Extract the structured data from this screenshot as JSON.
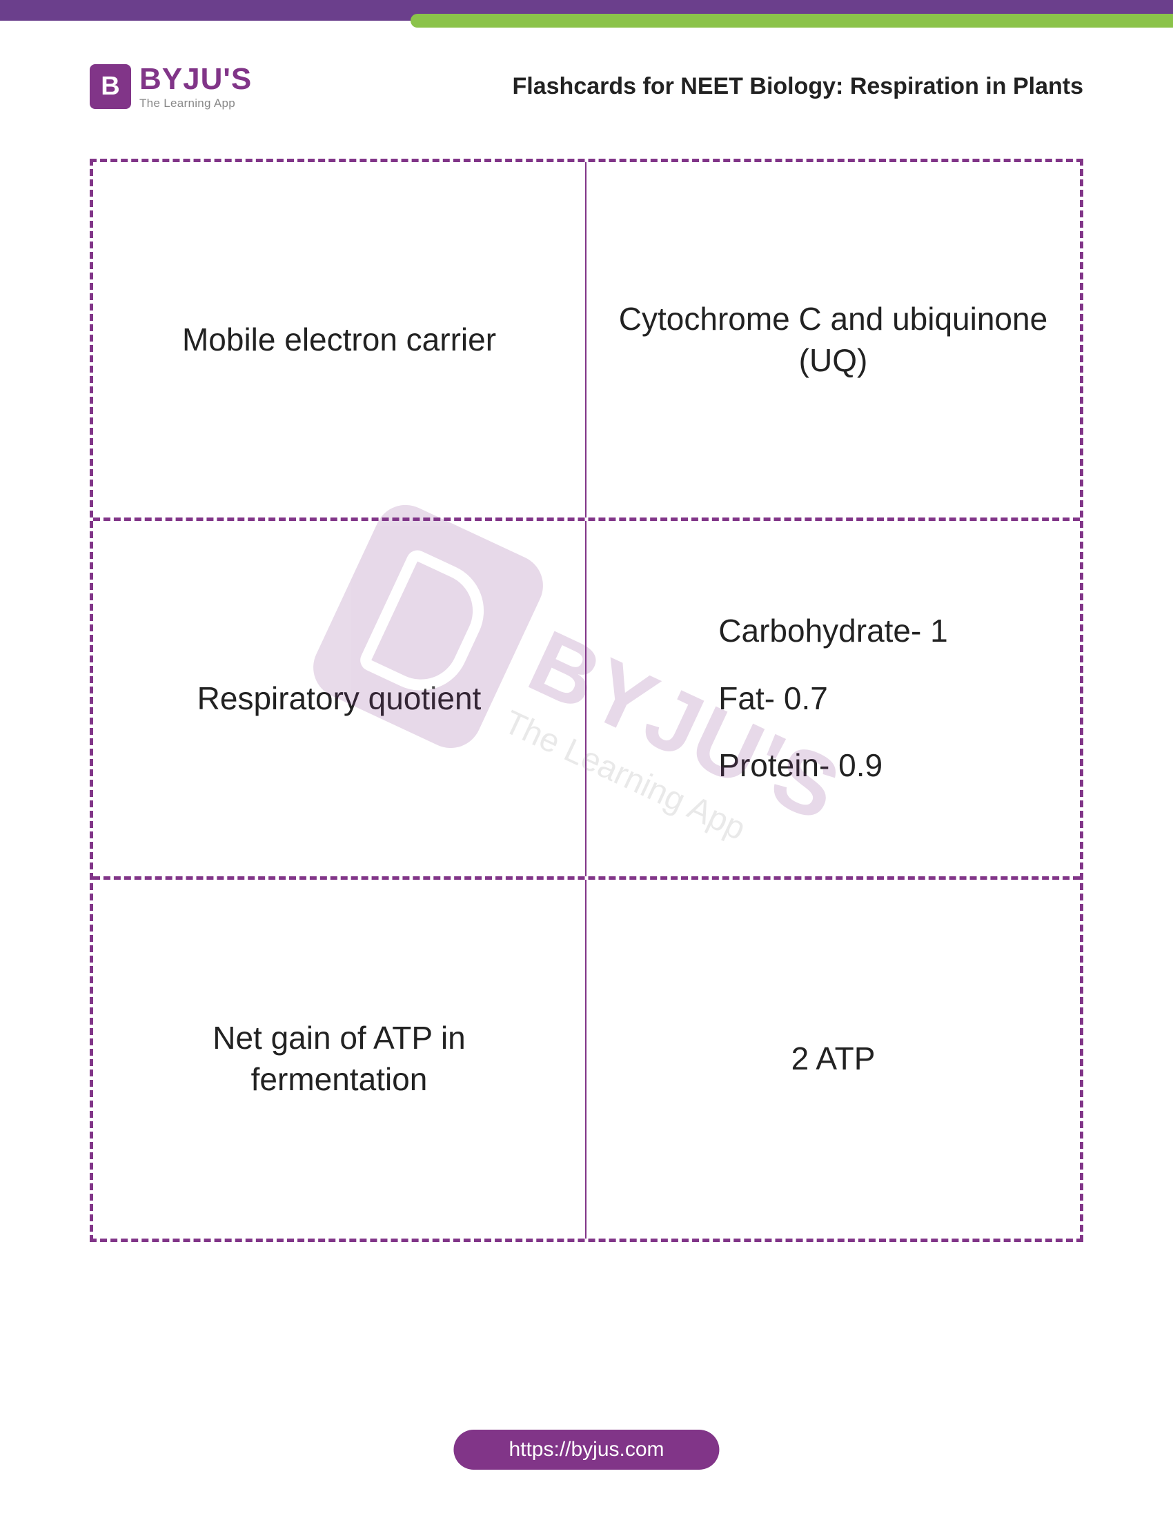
{
  "brand": {
    "badge_letter": "B",
    "name": "BYJU'S",
    "tagline": "The Learning App",
    "primary_color": "#813588",
    "accent_color": "#8bc34a"
  },
  "header": {
    "page_title": "Flashcards for NEET Biology: Respiration in Plants"
  },
  "flashcards": {
    "rows": [
      {
        "term": "Mobile electron carrier",
        "definition": "Cytochrome C and ubiquinone (UQ)"
      },
      {
        "term": "Respiratory quotient",
        "details": [
          "Carbohydrate- 1",
          "Fat- 0.7",
          "Protein- 0.9"
        ]
      },
      {
        "term": "Net gain of ATP in fermentation",
        "definition": "2 ATP"
      }
    ],
    "border_color": "#813588",
    "text_color": "#222222",
    "cell_fontsize": 46
  },
  "watermark": {
    "name": "BYJU'S",
    "tagline": "The Learning App"
  },
  "footer": {
    "url": "https://byjus.com",
    "pill_bg": "#813588",
    "pill_fg": "#ffffff"
  }
}
